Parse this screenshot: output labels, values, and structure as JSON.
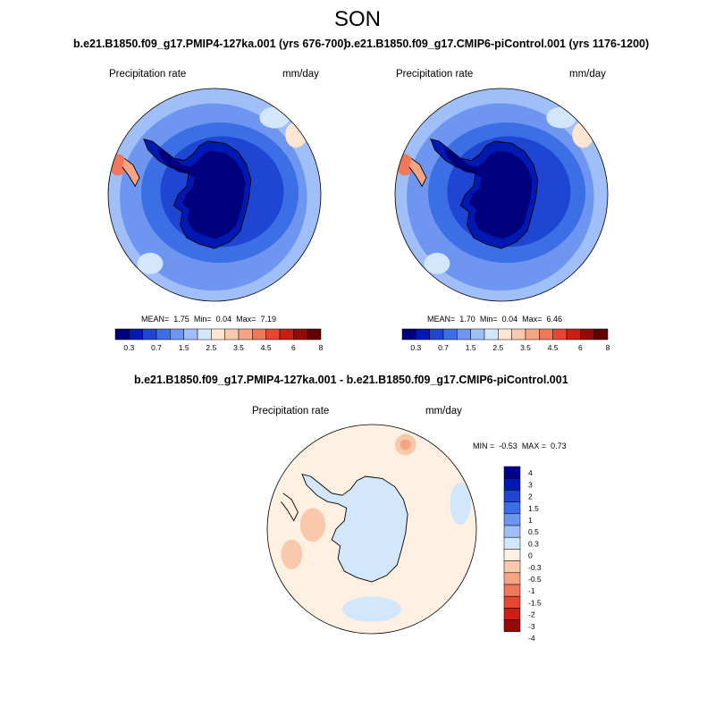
{
  "page": {
    "season_title": "SON"
  },
  "colormaps": {
    "abs_colors": [
      "#00007f",
      "#0019b2",
      "#1e46d2",
      "#3c6ee6",
      "#6e96f0",
      "#a0bef8",
      "#d2e6fc",
      "#ffe6d2",
      "#fac8aa",
      "#f5a582",
      "#f0785a",
      "#e64632",
      "#c81e14",
      "#960a05",
      "#640000"
    ],
    "abs_ticks": [
      "0.3",
      "0.7",
      "1.5",
      "2.5",
      "3.5",
      "4.5",
      "6",
      "8"
    ],
    "diff_colors": [
      "#00008c",
      "#0019b4",
      "#1e46d2",
      "#3c6ee6",
      "#6e96f0",
      "#a0bef8",
      "#d2e6fc",
      "#fff0e1",
      "#fac8aa",
      "#f5a582",
      "#f0785a",
      "#e64632",
      "#c81e14",
      "#960a05"
    ],
    "diff_ticks": [
      "4",
      "3",
      "2",
      "1.5",
      "1",
      "0.5",
      "0.3",
      "0",
      "-0.3",
      "-0.5",
      "-1",
      "-1.5",
      "-2",
      "-3",
      "-4"
    ]
  },
  "panels": {
    "left": {
      "title": "b.e21.B1850.f09_g17.PMIP4-127ka.001 (yrs 676-700)",
      "variable": "Precipitation rate",
      "units": "mm/day",
      "mean_label": "MEAN=",
      "mean_value": "1.75",
      "min_label": "Min=",
      "min_value": "0.04",
      "max_label": "Max=",
      "max_value": "7.19"
    },
    "right": {
      "title": "b.e21.B1850.f09_g17.CMIP6-piControl.001 (yrs 1176-1200)",
      "variable": "Precipitation rate",
      "units": "mm/day",
      "mean_label": "MEAN=",
      "mean_value": "1.70",
      "min_label": "Min=",
      "min_value": "0.04",
      "max_label": "Max=",
      "max_value": "6.46"
    },
    "difference": {
      "title": "b.e21.B1850.f09_g17.PMIP4-127ka.001 - b.e21.B1850.f09_g17.CMIP6-piControl.001",
      "variable": "Precipitation rate",
      "units": "mm/day",
      "min_label": "MIN =",
      "min_value": "-0.53",
      "max_label": "MAX =",
      "max_value": "0.73"
    }
  }
}
